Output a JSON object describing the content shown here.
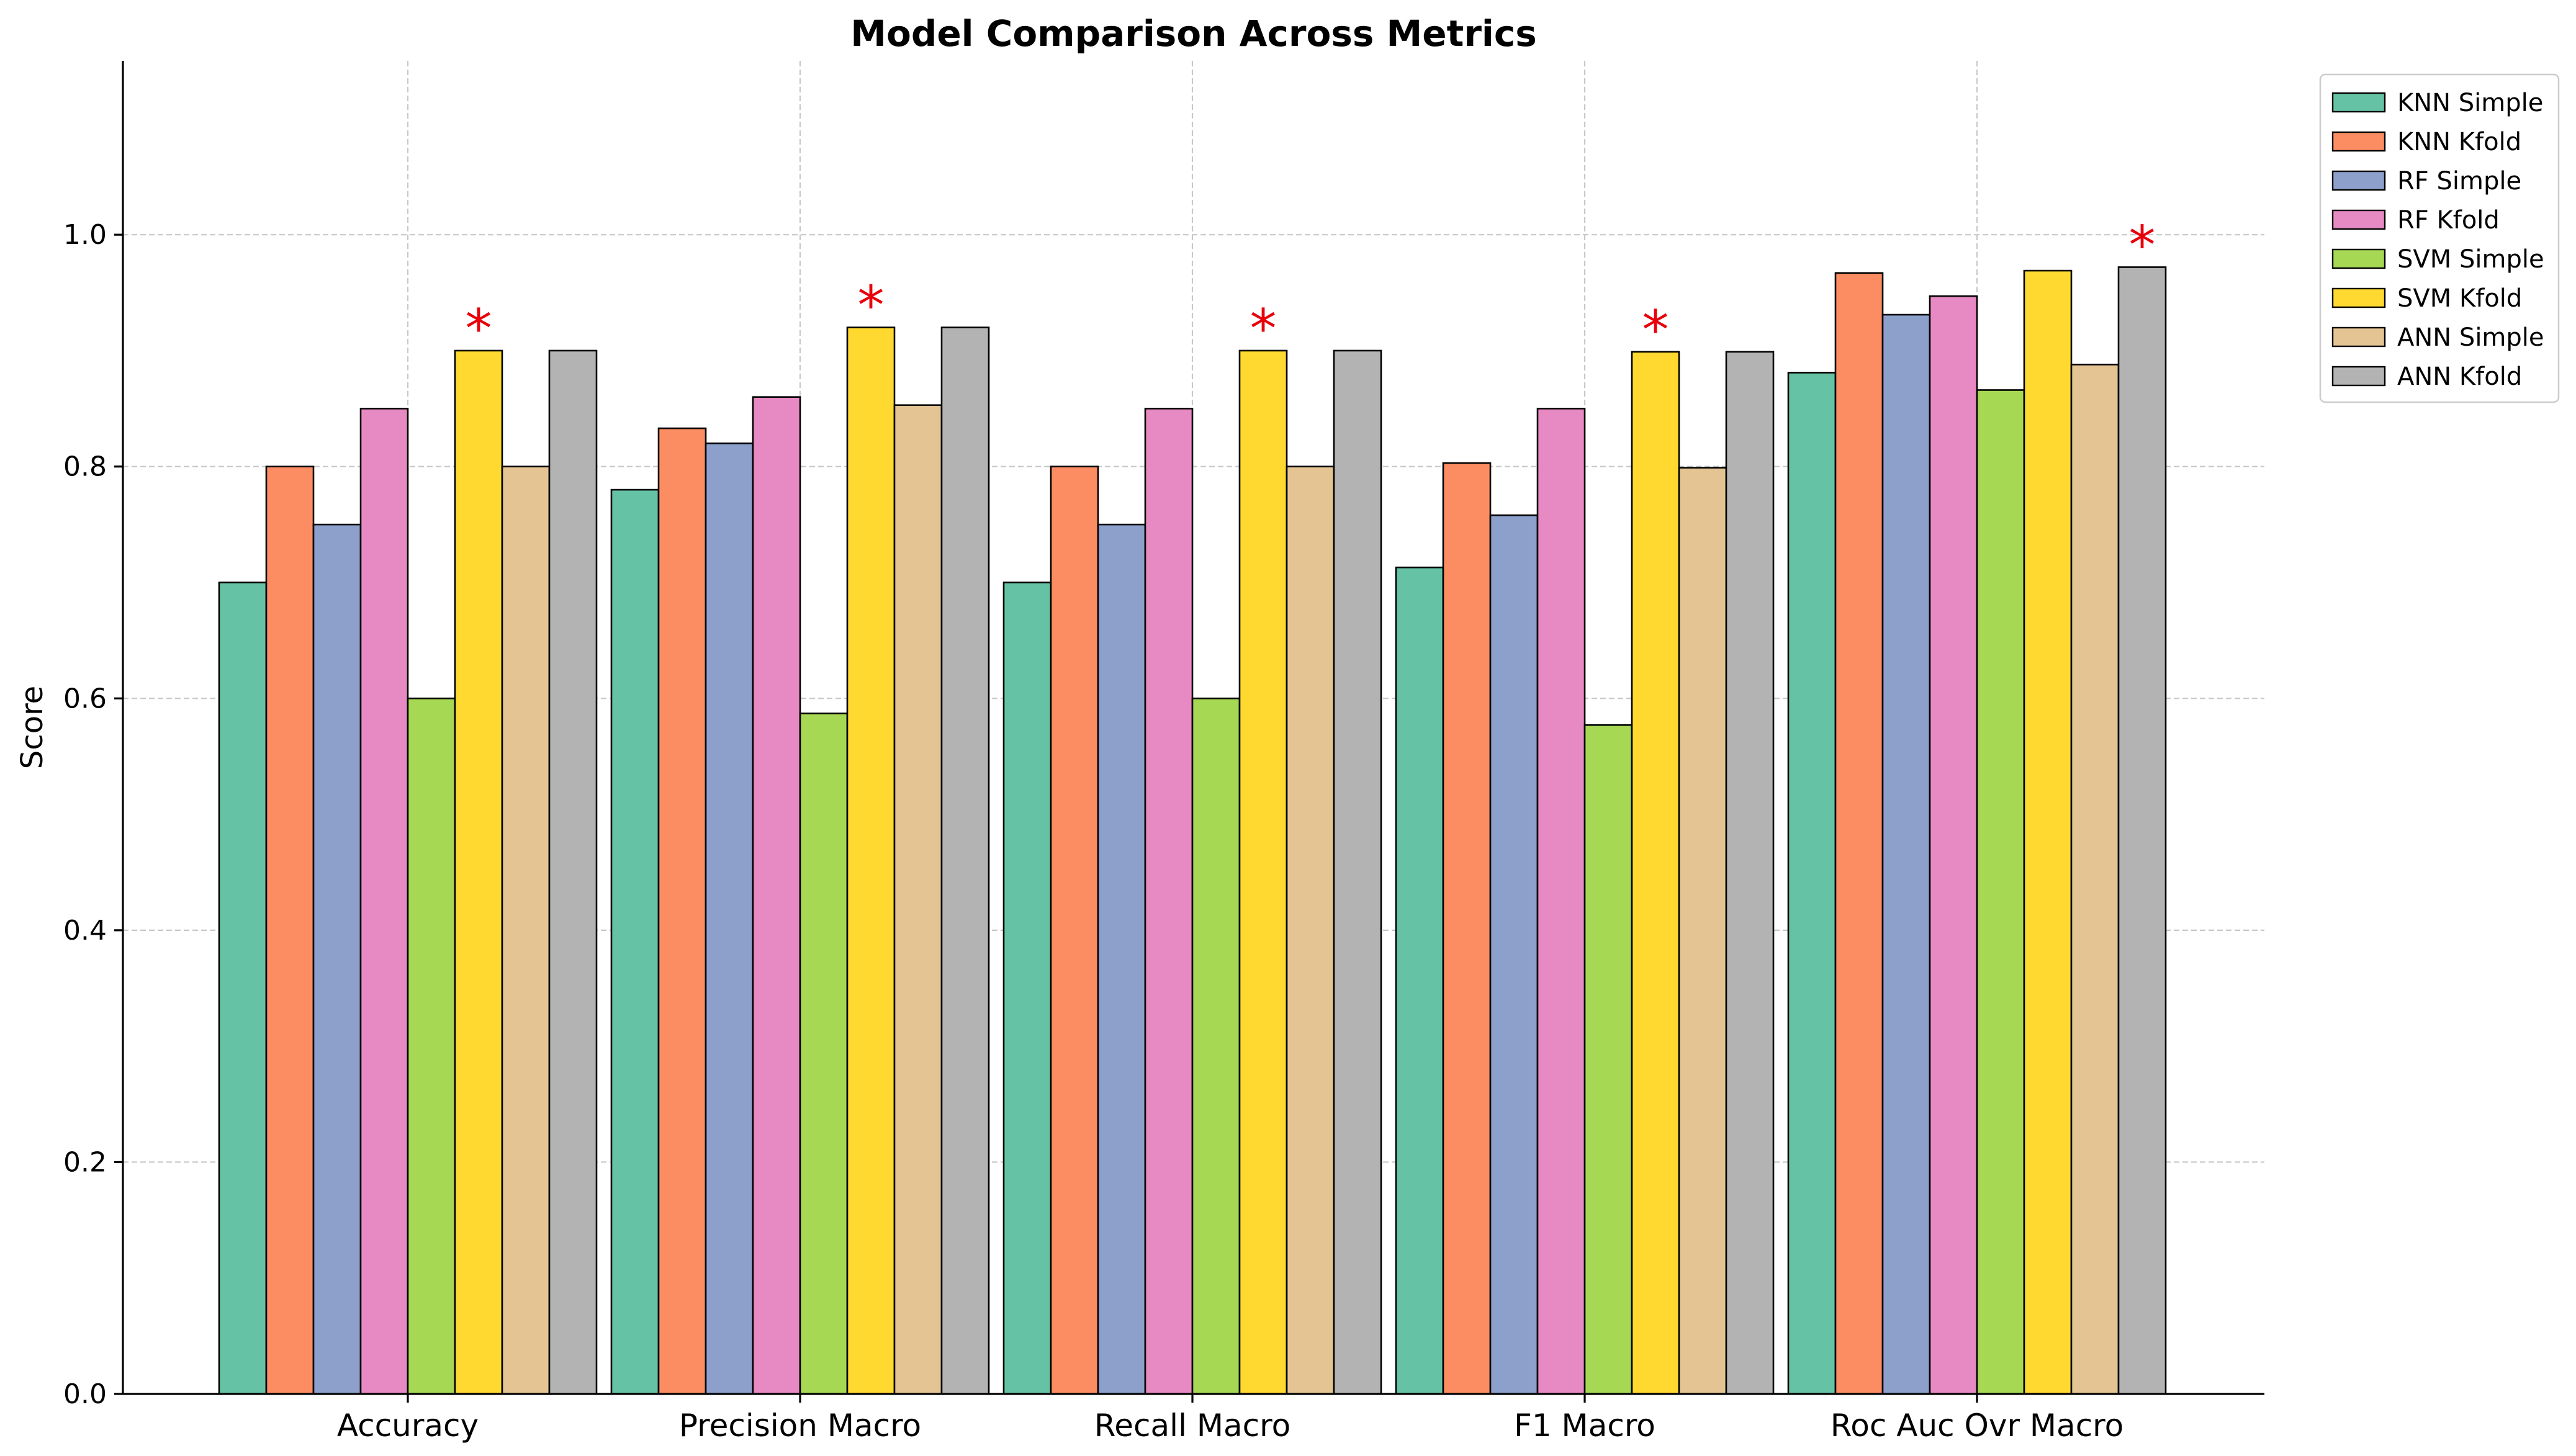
{
  "chart_data": {
    "type": "bar",
    "title": "Model Comparison Across Metrics",
    "xlabel": "",
    "ylabel": "Score",
    "ylim": [
      0,
      1.15
    ],
    "yticks": [
      "0.0",
      "0.2",
      "0.4",
      "0.6",
      "0.8",
      "1.0"
    ],
    "grid": true,
    "legend_position": "outside top-right",
    "categories": [
      "Accuracy",
      "Precision Macro",
      "Recall Macro",
      "F1 Macro",
      "Roc Auc Ovr Macro"
    ],
    "series": [
      {
        "name": "KNN Simple",
        "color": "#66c2a5",
        "values": [
          0.7,
          0.78,
          0.7,
          0.713,
          0.881
        ]
      },
      {
        "name": "KNN Kfold",
        "color": "#fc8d62",
        "values": [
          0.8,
          0.833,
          0.8,
          0.803,
          0.967
        ]
      },
      {
        "name": "RF Simple",
        "color": "#8da0cb",
        "values": [
          0.75,
          0.82,
          0.75,
          0.758,
          0.931
        ]
      },
      {
        "name": "RF Kfold",
        "color": "#e78ac3",
        "values": [
          0.85,
          0.86,
          0.85,
          0.85,
          0.947
        ]
      },
      {
        "name": "SVM Simple",
        "color": "#a6d854",
        "values": [
          0.6,
          0.587,
          0.6,
          0.577,
          0.866
        ]
      },
      {
        "name": "SVM Kfold",
        "color": "#ffd92f",
        "values": [
          0.9,
          0.92,
          0.9,
          0.899,
          0.969
        ]
      },
      {
        "name": "ANN Simple",
        "color": "#e5c494",
        "values": [
          0.8,
          0.853,
          0.8,
          0.799,
          0.888
        ]
      },
      {
        "name": "ANN Kfold",
        "color": "#b3b3b3",
        "values": [
          0.9,
          0.92,
          0.9,
          0.899,
          0.972
        ]
      }
    ],
    "best_markers": [
      {
        "category": "Accuracy",
        "series": "SVM Kfold",
        "symbol": "*"
      },
      {
        "category": "Precision Macro",
        "series": "SVM Kfold",
        "symbol": "*"
      },
      {
        "category": "Recall Macro",
        "series": "SVM Kfold",
        "symbol": "*"
      },
      {
        "category": "F1 Macro",
        "series": "SVM Kfold",
        "symbol": "*"
      },
      {
        "category": "Roc Auc Ovr Macro",
        "series": "ANN Kfold",
        "symbol": "*"
      }
    ],
    "marker_color": "#e8000b"
  }
}
